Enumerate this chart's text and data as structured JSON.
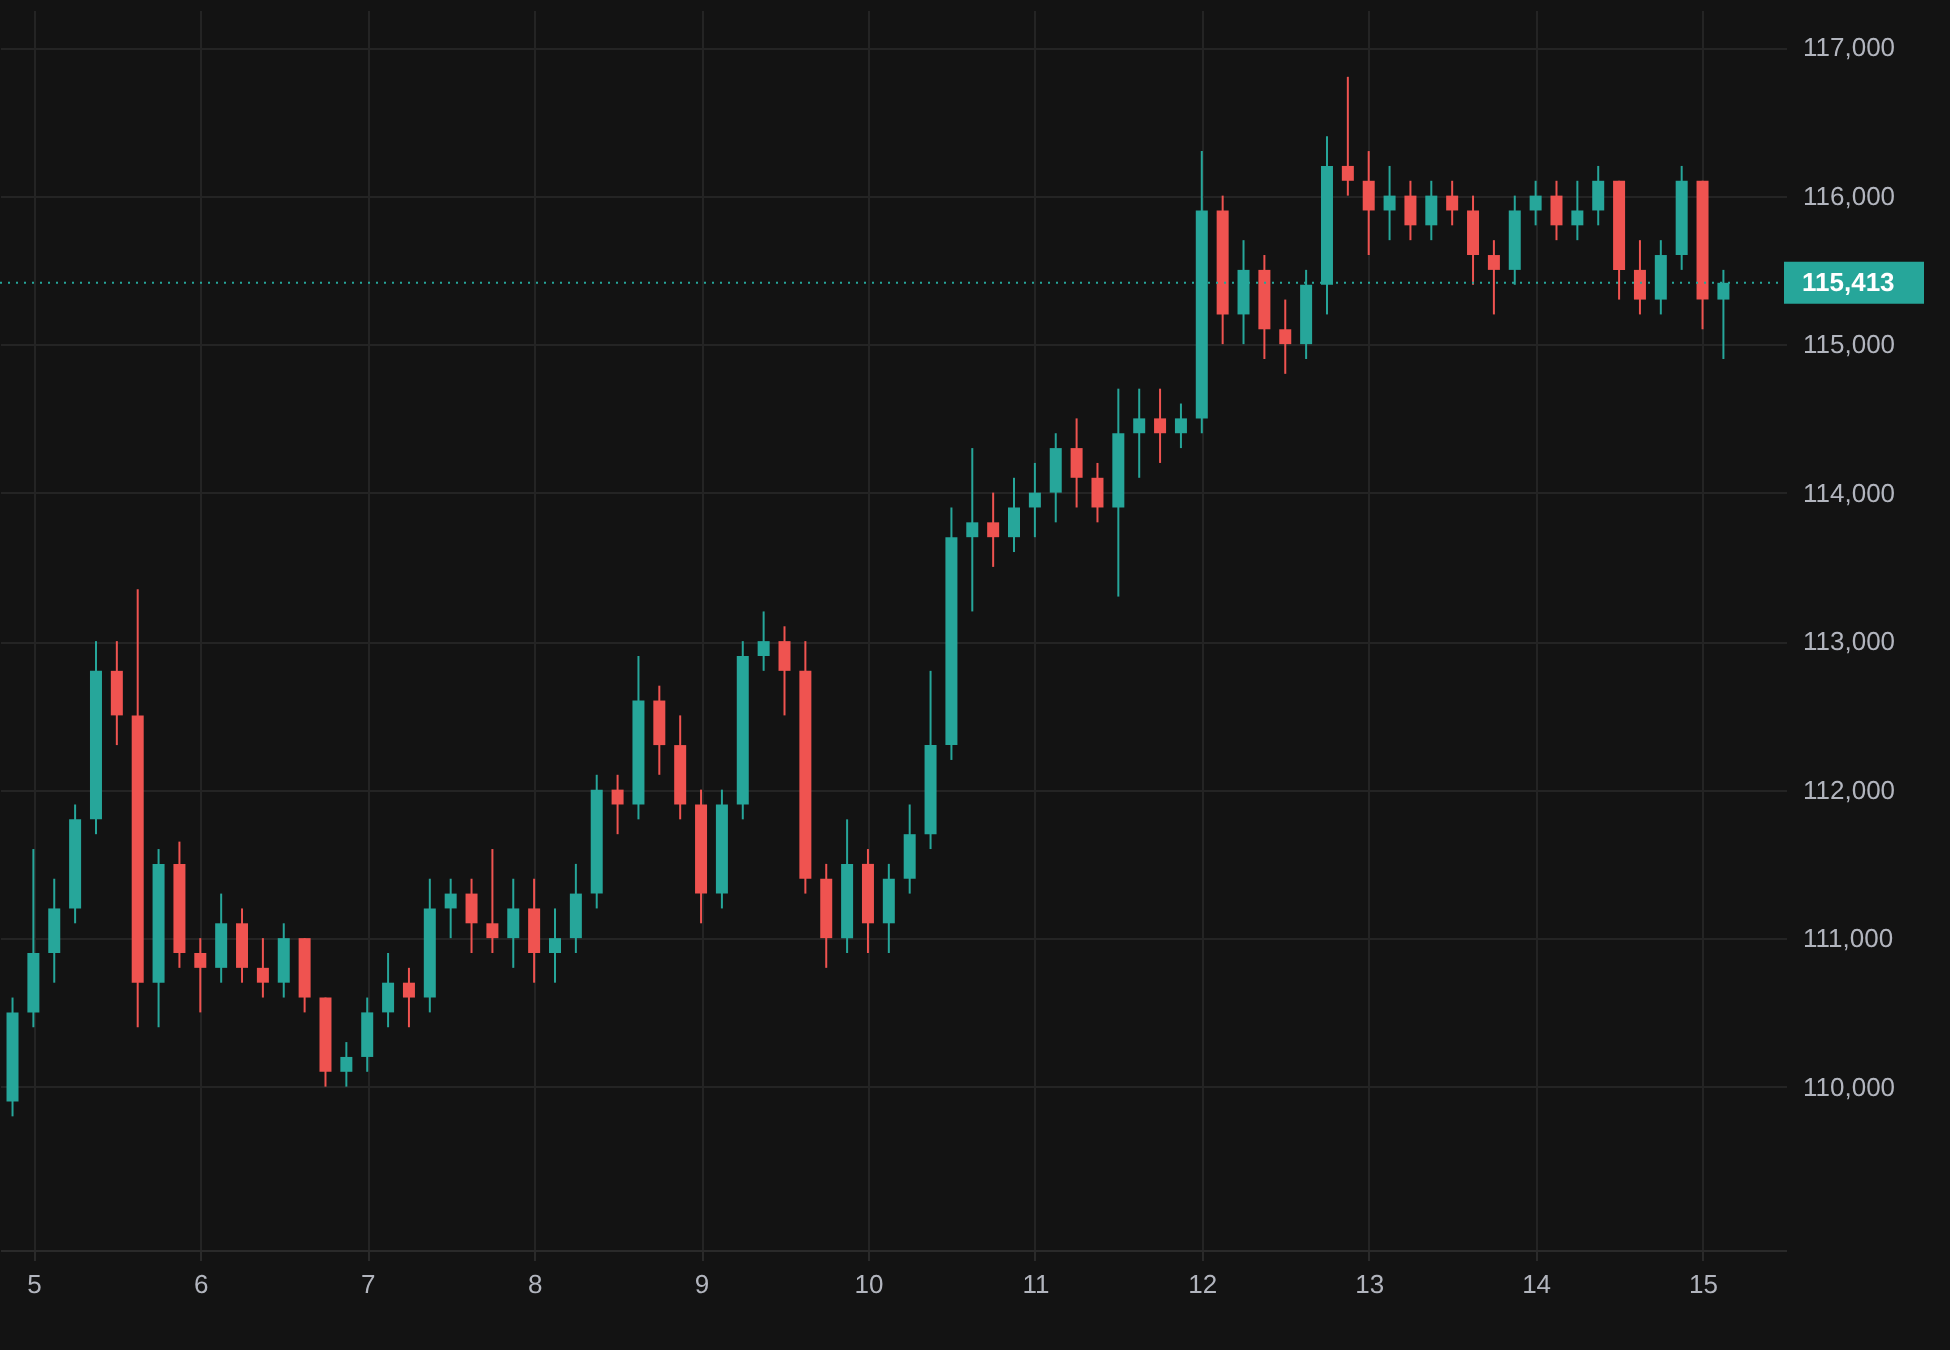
{
  "chart_data": {
    "type": "candlestick",
    "x": [
      4.875,
      5,
      5.125,
      5.25,
      5.375,
      5.5,
      5.625,
      5.75,
      5.875,
      6,
      6.125,
      6.25,
      6.375,
      6.5,
      6.625,
      6.75,
      6.875,
      7,
      7.125,
      7.25,
      7.375,
      7.5,
      7.625,
      7.75,
      7.875,
      8,
      8.125,
      8.25,
      8.375,
      8.5,
      8.625,
      8.75,
      8.875,
      9,
      9.125,
      9.25,
      9.375,
      9.5,
      9.625,
      9.75,
      9.875,
      10,
      10.125,
      10.25,
      10.375,
      10.5,
      10.625,
      10.75,
      10.875,
      11,
      11.125,
      11.25,
      11.375,
      11.5,
      11.625,
      11.75,
      11.875,
      12,
      12.125,
      12.25,
      12.375,
      12.5,
      12.625,
      12.75,
      12.875,
      13,
      13.125,
      13.25,
      13.375,
      13.5,
      13.625,
      13.75,
      13.875,
      14,
      14.125,
      14.25,
      14.375,
      14.5,
      14.625,
      14.75,
      14.875,
      15,
      15.125
    ],
    "ohlc": [
      [
        109900,
        110600,
        109800,
        110500
      ],
      [
        110500,
        111600,
        110400,
        110900
      ],
      [
        110900,
        111400,
        110700,
        111200
      ],
      [
        111200,
        111900,
        111100,
        111800
      ],
      [
        111800,
        113000,
        111700,
        112800
      ],
      [
        112800,
        113000,
        112300,
        112500
      ],
      [
        112500,
        113350,
        110400,
        110700
      ],
      [
        110700,
        111600,
        110400,
        111500
      ],
      [
        111500,
        111650,
        110800,
        110900
      ],
      [
        110900,
        111000,
        110500,
        110800
      ],
      [
        110800,
        111300,
        110700,
        111100
      ],
      [
        111100,
        111200,
        110700,
        110800
      ],
      [
        110800,
        111000,
        110600,
        110700
      ],
      [
        110700,
        111100,
        110600,
        111000
      ],
      [
        111000,
        111000,
        110500,
        110600
      ],
      [
        110600,
        110600,
        110000,
        110100
      ],
      [
        110100,
        110300,
        110000,
        110200
      ],
      [
        110200,
        110600,
        110100,
        110500
      ],
      [
        110500,
        110900,
        110400,
        110700
      ],
      [
        110700,
        110800,
        110400,
        110600
      ],
      [
        110600,
        111400,
        110500,
        111200
      ],
      [
        111200,
        111400,
        111000,
        111300
      ],
      [
        111300,
        111400,
        110900,
        111100
      ],
      [
        111100,
        111600,
        110900,
        111000
      ],
      [
        111000,
        111400,
        110800,
        111200
      ],
      [
        111200,
        111400,
        110700,
        110900
      ],
      [
        110900,
        111200,
        110700,
        111000
      ],
      [
        111000,
        111500,
        110900,
        111300
      ],
      [
        111300,
        112100,
        111200,
        112000
      ],
      [
        112000,
        112100,
        111700,
        111900
      ],
      [
        111900,
        112900,
        111800,
        112600
      ],
      [
        112600,
        112700,
        112100,
        112300
      ],
      [
        112300,
        112500,
        111800,
        111900
      ],
      [
        111900,
        112000,
        111100,
        111300
      ],
      [
        111300,
        112000,
        111200,
        111900
      ],
      [
        111900,
        113000,
        111800,
        112900
      ],
      [
        112900,
        113200,
        112800,
        113000
      ],
      [
        113000,
        113100,
        112500,
        112800
      ],
      [
        112800,
        113000,
        111300,
        111400
      ],
      [
        111400,
        111500,
        110800,
        111000
      ],
      [
        111000,
        111800,
        110900,
        111500
      ],
      [
        111500,
        111600,
        110900,
        111100
      ],
      [
        111100,
        111500,
        110900,
        111400
      ],
      [
        111400,
        111900,
        111300,
        111700
      ],
      [
        111700,
        112800,
        111600,
        112300
      ],
      [
        112300,
        113900,
        112200,
        113700
      ],
      [
        113700,
        114300,
        113200,
        113800
      ],
      [
        113800,
        114000,
        113500,
        113700
      ],
      [
        113700,
        114100,
        113600,
        113900
      ],
      [
        113900,
        114200,
        113700,
        114000
      ],
      [
        114000,
        114400,
        113800,
        114300
      ],
      [
        114300,
        114500,
        113900,
        114100
      ],
      [
        114100,
        114200,
        113800,
        113900
      ],
      [
        113900,
        114700,
        113300,
        114400
      ],
      [
        114400,
        114700,
        114100,
        114500
      ],
      [
        114500,
        114700,
        114200,
        114400
      ],
      [
        114400,
        114600,
        114300,
        114500
      ],
      [
        114500,
        116300,
        114400,
        115900
      ],
      [
        115900,
        116000,
        115000,
        115200
      ],
      [
        115200,
        115700,
        115000,
        115500
      ],
      [
        115500,
        115600,
        114900,
        115100
      ],
      [
        115100,
        115300,
        114800,
        115000
      ],
      [
        115000,
        115500,
        114900,
        115400
      ],
      [
        115400,
        116400,
        115200,
        116200
      ],
      [
        116200,
        116800,
        116000,
        116100
      ],
      [
        116100,
        116300,
        115600,
        115900
      ],
      [
        115900,
        116200,
        115700,
        116000
      ],
      [
        116000,
        116100,
        115700,
        115800
      ],
      [
        115800,
        116100,
        115700,
        116000
      ],
      [
        116000,
        116100,
        115800,
        115900
      ],
      [
        115900,
        116000,
        115400,
        115600
      ],
      [
        115600,
        115700,
        115200,
        115500
      ],
      [
        115500,
        116000,
        115400,
        115900
      ],
      [
        115900,
        116100,
        115800,
        116000
      ],
      [
        116000,
        116100,
        115700,
        115800
      ],
      [
        115800,
        116100,
        115700,
        115900
      ],
      [
        115900,
        116200,
        115800,
        116100
      ],
      [
        116100,
        116100,
        115300,
        115500
      ],
      [
        115500,
        115700,
        115200,
        115300
      ],
      [
        115300,
        115700,
        115200,
        115600
      ],
      [
        115600,
        116200,
        115500,
        116100
      ],
      [
        116100,
        116100,
        115100,
        115300
      ],
      [
        115300,
        115500,
        114900,
        115413
      ]
    ],
    "xlim": [
      4.8,
      15.5
    ],
    "ylim": [
      108900,
      117250
    ],
    "xticks": [
      5,
      6,
      7,
      8,
      9,
      10,
      11,
      12,
      13,
      14,
      15
    ],
    "yticks": [
      {
        "value": 110000,
        "label": "110,000"
      },
      {
        "value": 111000,
        "label": "111,000"
      },
      {
        "value": 112000,
        "label": "112,000"
      },
      {
        "value": 113000,
        "label": "113,000"
      },
      {
        "value": 114000,
        "label": "114,000"
      },
      {
        "value": 115000,
        "label": "115,000"
      },
      {
        "value": 116000,
        "label": "116,000"
      },
      {
        "value": 117000,
        "label": "117,000"
      }
    ],
    "grid": true,
    "ref_lines": [
      {
        "axis": "y",
        "value": 115413,
        "label": "115,413",
        "color": "#26a69a",
        "line_style": "dotted"
      }
    ]
  }
}
